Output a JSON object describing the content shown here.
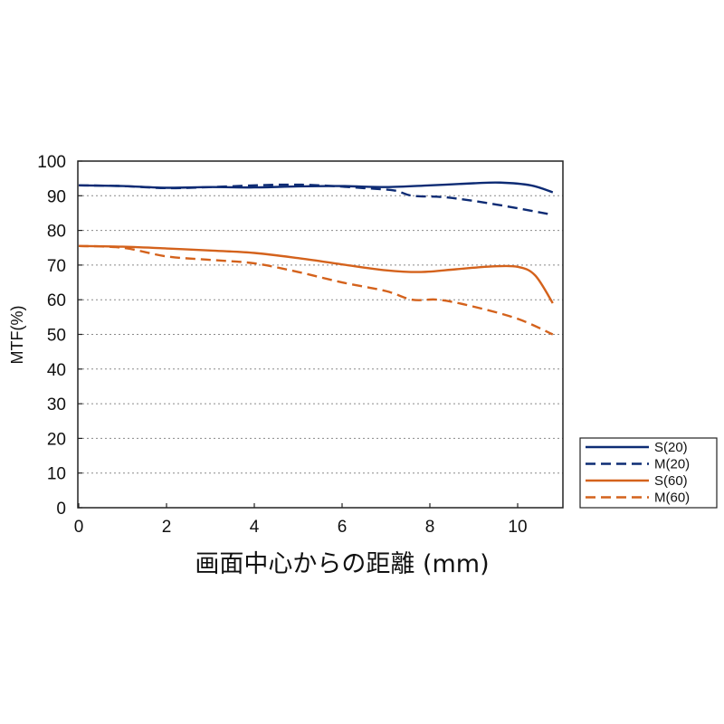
{
  "chart_data": {
    "type": "line",
    "xlabel": "画面中心からの距離 (mm)",
    "ylabel": "MTF(%)",
    "xlim": [
      0,
      10.8
    ],
    "ylim": [
      0,
      100
    ],
    "x_ticks": [
      0,
      2,
      4,
      6,
      8,
      10
    ],
    "y_ticks": [
      0,
      10,
      20,
      30,
      40,
      50,
      60,
      70,
      80,
      90,
      100
    ],
    "grid": "horizontal-dotted",
    "legend_position": "right",
    "series": [
      {
        "name": "S(20)",
        "color": "#0d2b74",
        "dash": "solid",
        "x": [
          0,
          1,
          2,
          3,
          4,
          5,
          6,
          7,
          8,
          9,
          9.6,
          10.3,
          10.8
        ],
        "y": [
          93,
          92.8,
          92.3,
          92.5,
          92.4,
          92.7,
          92.8,
          92.5,
          93,
          93.6,
          93.8,
          93,
          91
        ]
      },
      {
        "name": "M(20)",
        "color": "#0d2b74",
        "dash": "dashed",
        "x": [
          0,
          1,
          2,
          3,
          4,
          4.8,
          5.5,
          6.5,
          7.2,
          7.6,
          8.4,
          9.5,
          10.8
        ],
        "y": [
          93,
          92.8,
          92.2,
          92.5,
          93,
          93.2,
          93,
          92.2,
          91.5,
          90,
          89.5,
          87.5,
          84.5
        ]
      },
      {
        "name": "S(60)",
        "color": "#d4621c",
        "dash": "solid",
        "x": [
          0,
          1,
          2,
          3,
          4,
          5,
          6,
          7,
          7.8,
          8.6,
          9.4,
          10,
          10.4,
          10.8
        ],
        "y": [
          75.5,
          75.3,
          74.8,
          74.2,
          73.5,
          72,
          70.2,
          68.5,
          68,
          68.8,
          69.6,
          69.5,
          67,
          59
        ]
      },
      {
        "name": "M(60)",
        "color": "#d4621c",
        "dash": "dashed",
        "x": [
          0,
          1,
          2,
          3,
          4,
          5,
          6,
          7,
          7.6,
          8.2,
          9,
          10,
          10.8
        ],
        "y": [
          75.5,
          75,
          72.5,
          71.5,
          70.5,
          68,
          65,
          62.5,
          60,
          60,
          58,
          54.5,
          50
        ]
      }
    ]
  }
}
